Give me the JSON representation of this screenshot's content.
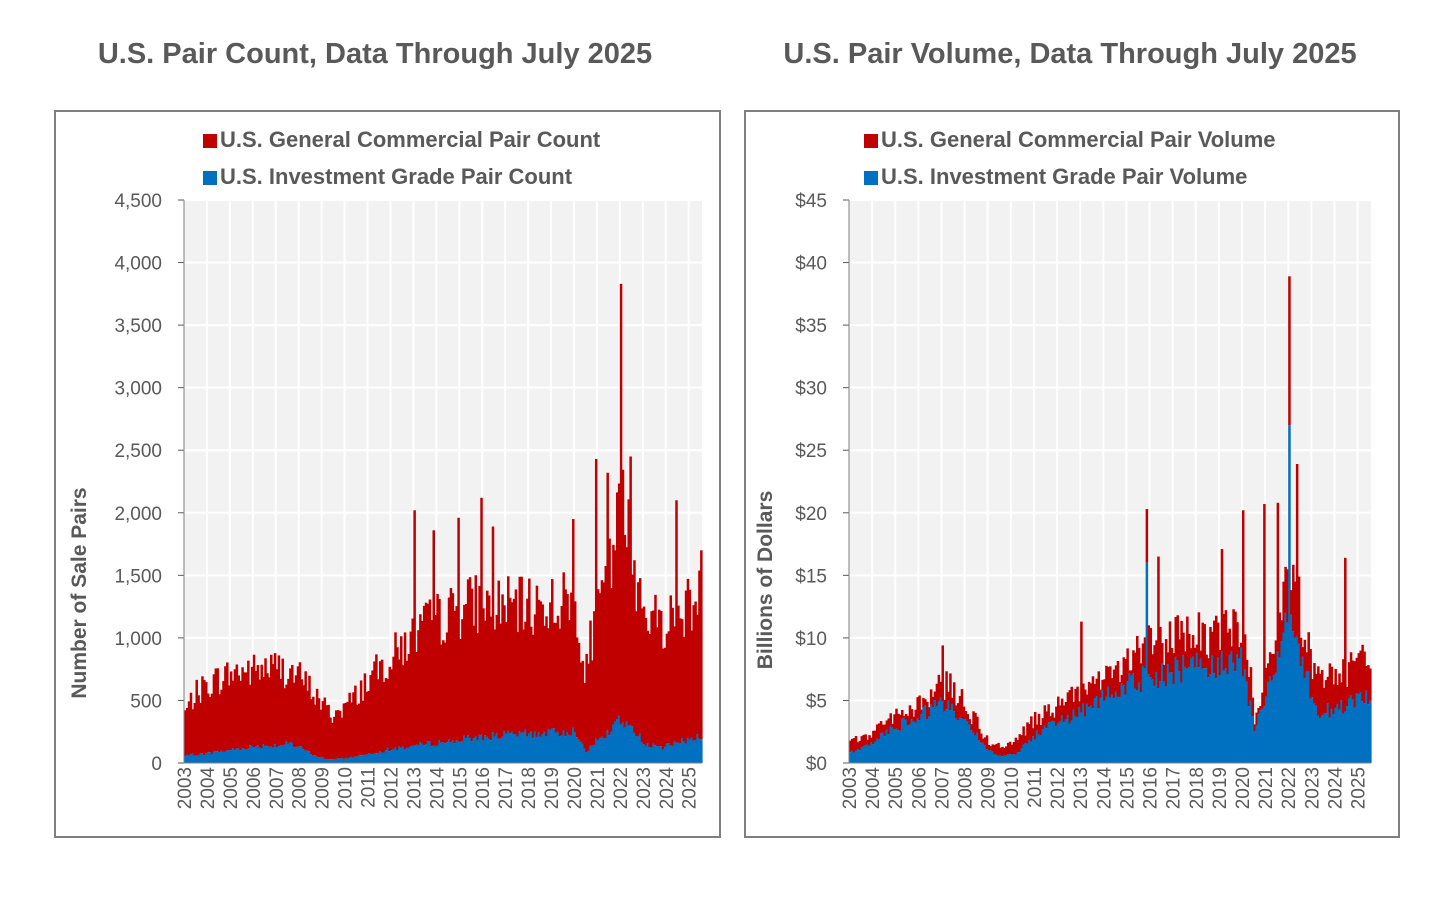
{
  "chart_data": [
    {
      "id": "count",
      "type": "bar",
      "stacked": true,
      "title": "U.S. Pair Count, Data Through July 2025",
      "ylabel": "Number of Sale Pairs",
      "xlabel": "",
      "ylim": [
        0,
        4500
      ],
      "yticks": [
        0,
        500,
        1000,
        1500,
        2000,
        2500,
        3000,
        3500,
        4000,
        4500
      ],
      "ytick_labels": [
        "0",
        "500",
        "1,000",
        "1,500",
        "2,000",
        "2,500",
        "3,000",
        "3,500",
        "4,000",
        "4,500"
      ],
      "xtick_labels": [
        "2003",
        "2004",
        "2005",
        "2006",
        "2007",
        "2008",
        "2009",
        "2010",
        "2011",
        "2012",
        "2013",
        "2014",
        "2015",
        "2016",
        "2017",
        "2018",
        "2019",
        "2020",
        "2021",
        "2022",
        "2023",
        "2024",
        "2025"
      ],
      "legend_position": "top",
      "granularity": "monthly",
      "series": [
        {
          "name": "U.S. General Commercial Pair Count",
          "color": "#c00000",
          "anchors": [
            [
              2003.0,
              450
            ],
            [
              2003.4,
              600
            ],
            [
              2004.0,
              700
            ],
            [
              2004.5,
              750
            ],
            [
              2005.0,
              790
            ],
            [
              2005.5,
              820
            ],
            [
              2006.0,
              820
            ],
            [
              2006.5,
              840
            ],
            [
              2007.0,
              850
            ],
            [
              2007.5,
              820
            ],
            [
              2008.0,
              760
            ],
            [
              2008.5,
              650
            ],
            [
              2009.0,
              520
            ],
            [
              2009.4,
              420
            ],
            [
              2009.8,
              480
            ],
            [
              2010.3,
              560
            ],
            [
              2010.8,
              700
            ],
            [
              2011.3,
              800
            ],
            [
              2011.8,
              900
            ],
            [
              2012.3,
              1000
            ],
            [
              2012.8,
              1100
            ],
            [
              2013.3,
              1200
            ],
            [
              2013.8,
              1250
            ],
            [
              2014.3,
              1300
            ],
            [
              2014.8,
              1350
            ],
            [
              2015.3,
              1400
            ],
            [
              2015.8,
              1430
            ],
            [
              2016.3,
              1420
            ],
            [
              2016.8,
              1400
            ],
            [
              2017.3,
              1380
            ],
            [
              2017.8,
              1380
            ],
            [
              2018.3,
              1400
            ],
            [
              2018.8,
              1420
            ],
            [
              2019.3,
              1420
            ],
            [
              2019.8,
              1450
            ],
            [
              2020.2,
              1250
            ],
            [
              2020.4,
              700
            ],
            [
              2020.7,
              1100
            ],
            [
              2021.0,
              1300
            ],
            [
              2021.5,
              1700
            ],
            [
              2021.9,
              2150
            ],
            [
              2022.1,
              2250
            ],
            [
              2022.4,
              1950
            ],
            [
              2022.8,
              1550
            ],
            [
              2023.3,
              1300
            ],
            [
              2023.8,
              1250
            ],
            [
              2024.3,
              1300
            ],
            [
              2024.8,
              1380
            ],
            [
              2025.3,
              1450
            ],
            [
              2025.6,
              1480
            ]
          ],
          "spikes": [
            [
              2013.0,
              2020
            ],
            [
              2013.8,
              1860
            ],
            [
              2014.9,
              1960
            ],
            [
              2015.95,
              2120
            ],
            [
              2016.4,
              1890
            ],
            [
              2019.9,
              1950
            ],
            [
              2020.9,
              2430
            ],
            [
              2021.4,
              2320
            ],
            [
              2022.0,
              3830
            ],
            [
              2022.4,
              2450
            ],
            [
              2024.4,
              2100
            ],
            [
              2025.5,
              1700
            ]
          ]
        },
        {
          "name": "U.S. Investment Grade Pair Count",
          "color": "#0070c0",
          "anchors": [
            [
              2003.0,
              60
            ],
            [
              2004.0,
              80
            ],
            [
              2005.0,
              110
            ],
            [
              2006.0,
              140
            ],
            [
              2007.0,
              150
            ],
            [
              2007.5,
              160
            ],
            [
              2008.0,
              130
            ],
            [
              2008.7,
              60
            ],
            [
              2009.3,
              30
            ],
            [
              2010.0,
              40
            ],
            [
              2010.8,
              70
            ],
            [
              2011.5,
              100
            ],
            [
              2012.5,
              130
            ],
            [
              2013.5,
              160
            ],
            [
              2014.5,
              180
            ],
            [
              2015.5,
              210
            ],
            [
              2016.5,
              230
            ],
            [
              2017.5,
              240
            ],
            [
              2018.5,
              250
            ],
            [
              2019.5,
              260
            ],
            [
              2019.9,
              270
            ],
            [
              2020.3,
              200
            ],
            [
              2020.5,
              100
            ],
            [
              2020.9,
              180
            ],
            [
              2021.5,
              250
            ],
            [
              2021.9,
              380
            ],
            [
              2022.2,
              330
            ],
            [
              2022.7,
              240
            ],
            [
              2023.2,
              150
            ],
            [
              2023.8,
              130
            ],
            [
              2024.3,
              160
            ],
            [
              2024.8,
              190
            ],
            [
              2025.3,
              220
            ],
            [
              2025.6,
              220
            ]
          ]
        }
      ]
    },
    {
      "id": "volume",
      "type": "bar",
      "stacked": true,
      "title": "U.S. Pair Volume, Data Through July 2025",
      "ylabel": "Billions of Dollars",
      "xlabel": "",
      "ylim": [
        0,
        45
      ],
      "yticks": [
        0,
        5,
        10,
        15,
        20,
        25,
        30,
        35,
        40,
        45
      ],
      "ytick_labels": [
        "$0",
        "$5",
        "$10",
        "$15",
        "$20",
        "$25",
        "$30",
        "$35",
        "$40",
        "$45"
      ],
      "xtick_labels": [
        "2003",
        "2004",
        "2005",
        "2006",
        "2007",
        "2008",
        "2009",
        "2010",
        "2011",
        "2012",
        "2013",
        "2014",
        "2015",
        "2016",
        "2017",
        "2018",
        "2019",
        "2020",
        "2021",
        "2022",
        "2023",
        "2024",
        "2025"
      ],
      "legend_position": "top",
      "granularity": "monthly",
      "series": [
        {
          "name": "U.S. General Commercial Pair Volume",
          "color": "#c00000",
          "anchors": [
            [
              2003.0,
              1.8
            ],
            [
              2003.8,
              2.5
            ],
            [
              2004.5,
              3.5
            ],
            [
              2005.5,
              4.8
            ],
            [
              2006.5,
              6.0
            ],
            [
              2007.0,
              7.0
            ],
            [
              2007.5,
              6.5
            ],
            [
              2008.0,
              5.0
            ],
            [
              2008.5,
              3.5
            ],
            [
              2009.0,
              1.8
            ],
            [
              2009.6,
              1.5
            ],
            [
              2010.2,
              2.0
            ],
            [
              2010.8,
              3.5
            ],
            [
              2011.5,
              4.5
            ],
            [
              2012.2,
              5.2
            ],
            [
              2012.8,
              6.0
            ],
            [
              2013.5,
              7.2
            ],
            [
              2014.5,
              8.5
            ],
            [
              2015.5,
              10.0
            ],
            [
              2016.0,
              10.5
            ],
            [
              2016.5,
              10.8
            ],
            [
              2017.5,
              11.0
            ],
            [
              2018.5,
              11.5
            ],
            [
              2019.5,
              12.0
            ],
            [
              2019.9,
              12.5
            ],
            [
              2020.3,
              9.0
            ],
            [
              2020.5,
              4.0
            ],
            [
              2020.9,
              7.5
            ],
            [
              2021.5,
              12.0
            ],
            [
              2021.9,
              17.0
            ],
            [
              2022.3,
              15.0
            ],
            [
              2022.8,
              10.0
            ],
            [
              2023.2,
              8.0
            ],
            [
              2023.8,
              7.5
            ],
            [
              2024.5,
              8.0
            ],
            [
              2025.0,
              9.0
            ],
            [
              2025.6,
              9.5
            ]
          ],
          "spikes": [
            [
              2007.0,
              9.4
            ],
            [
              2013.0,
              11.3
            ],
            [
              2015.85,
              20.3
            ],
            [
              2016.3,
              16.5
            ],
            [
              2019.1,
              17.1
            ],
            [
              2020.0,
              20.2
            ],
            [
              2020.95,
              20.7
            ],
            [
              2021.5,
              20.8
            ],
            [
              2022.0,
              38.9
            ],
            [
              2022.35,
              23.9
            ],
            [
              2024.45,
              16.4
            ],
            [
              2025.6,
              11.1
            ]
          ]
        },
        {
          "name": "U.S. Investment Grade Pair Volume",
          "color": "#0070c0",
          "anchors": [
            [
              2003.0,
              0.9
            ],
            [
              2003.8,
              1.5
            ],
            [
              2004.5,
              2.5
            ],
            [
              2005.5,
              3.5
            ],
            [
              2006.5,
              4.5
            ],
            [
              2007.0,
              5.0
            ],
            [
              2007.5,
              4.5
            ],
            [
              2008.0,
              3.5
            ],
            [
              2008.5,
              2.5
            ],
            [
              2009.0,
              1.0
            ],
            [
              2009.6,
              0.6
            ],
            [
              2010.2,
              0.8
            ],
            [
              2010.8,
              2.0
            ],
            [
              2011.5,
              3.0
            ],
            [
              2012.2,
              3.5
            ],
            [
              2012.8,
              4.0
            ],
            [
              2013.5,
              5.0
            ],
            [
              2014.5,
              6.0
            ],
            [
              2015.5,
              7.0
            ],
            [
              2016.5,
              7.5
            ],
            [
              2017.5,
              8.0
            ],
            [
              2018.5,
              8.3
            ],
            [
              2019.5,
              8.8
            ],
            [
              2019.9,
              9.0
            ],
            [
              2020.3,
              5.0
            ],
            [
              2020.5,
              2.5
            ],
            [
              2020.9,
              5.0
            ],
            [
              2021.5,
              9.0
            ],
            [
              2021.9,
              12.5
            ],
            [
              2022.3,
              10.0
            ],
            [
              2022.8,
              7.0
            ],
            [
              2023.2,
              4.0
            ],
            [
              2023.8,
              4.5
            ],
            [
              2024.5,
              5.0
            ],
            [
              2025.0,
              5.5
            ],
            [
              2025.6,
              6.0
            ]
          ],
          "spikes": [
            [
              2015.85,
              16.0
            ],
            [
              2022.0,
              27.0
            ]
          ]
        }
      ]
    }
  ]
}
